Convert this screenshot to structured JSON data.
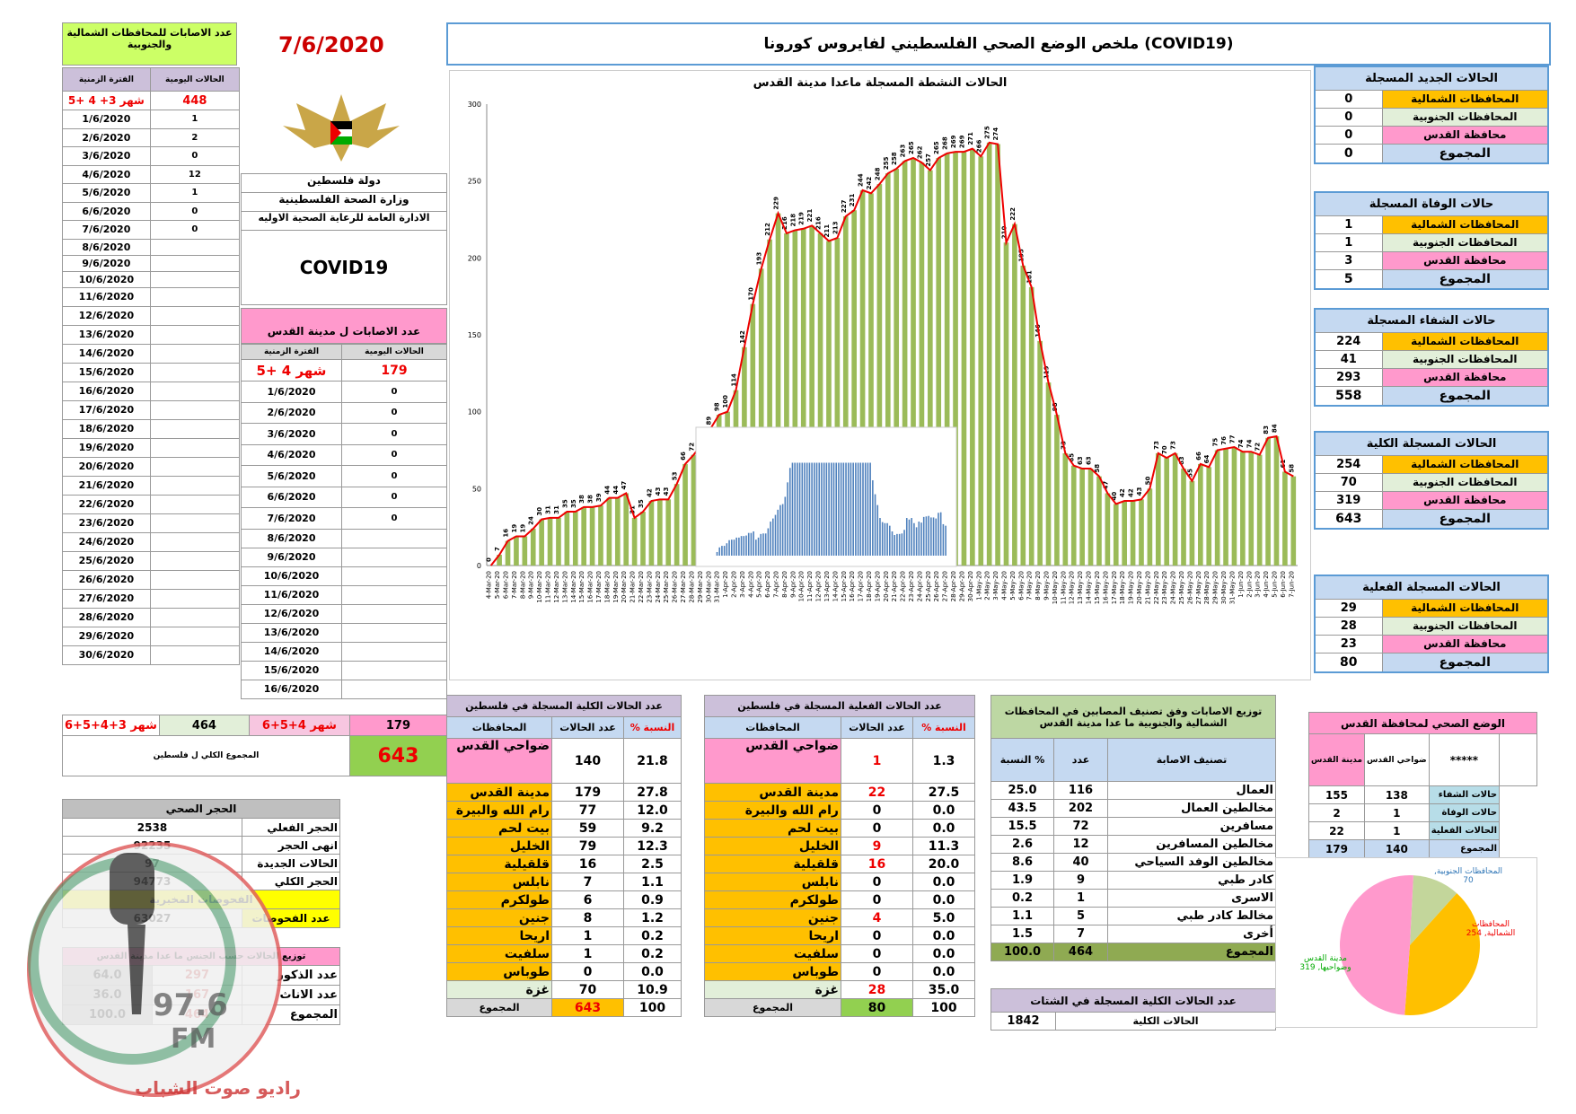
{
  "header": {
    "title": "ملخص الوضع الصحي الفلسطيني لفايروس كورونا (COVID19)",
    "date": "7/6/2020",
    "org1": "دولة فلسطين",
    "org2": "وزارة الصحة الفلسطينية",
    "org3": "الادارة العامة للرعاية الصحية الاوليه",
    "covid": "COVID19"
  },
  "left_table": {
    "title": "عدد الاصابات للمحافظات الشمالية والجنوبية",
    "col_daily": "الحالات اليومية",
    "col_period": "الفترة الزمنية",
    "first": {
      "period": "شهر 3+ 4 +5",
      "value": "448"
    },
    "rows": [
      [
        "1/6/2020",
        "1"
      ],
      [
        "2/6/2020",
        "2"
      ],
      [
        "3/6/2020",
        "0"
      ],
      [
        "4/6/2020",
        "12"
      ],
      [
        "5/6/2020",
        "1"
      ],
      [
        "6/6/2020",
        "0"
      ],
      [
        "7/6/2020",
        "0"
      ],
      [
        "8/6/2020",
        ""
      ],
      [
        "9/6/2020",
        ""
      ],
      [
        "10/6/2020",
        ""
      ],
      [
        "11/6/2020",
        ""
      ],
      [
        "12/6/2020",
        ""
      ],
      [
        "13/6/2020",
        ""
      ],
      [
        "14/6/2020",
        ""
      ],
      [
        "15/6/2020",
        ""
      ],
      [
        "16/6/2020",
        ""
      ],
      [
        "17/6/2020",
        ""
      ],
      [
        "18/6/2020",
        ""
      ],
      [
        "19/6/2020",
        ""
      ],
      [
        "20/6/2020",
        ""
      ],
      [
        "21/6/2020",
        ""
      ],
      [
        "22/6/2020",
        ""
      ],
      [
        "23/6/2020",
        ""
      ],
      [
        "24/6/2020",
        ""
      ],
      [
        "25/6/2020",
        ""
      ],
      [
        "26/6/2020",
        ""
      ],
      [
        "27/6/2020",
        ""
      ],
      [
        "28/6/2020",
        ""
      ],
      [
        "29/6/2020",
        ""
      ],
      [
        "30/6/2020",
        ""
      ]
    ],
    "total_period": "شهر 3+4+5+6",
    "total": "464"
  },
  "jer_table": {
    "title": "عدد الاصابات ل مدينة القدس",
    "col_period": "الفترة الزمنية",
    "col_daily": "الحالات اليومية",
    "first": {
      "period": "شهر 4 +5",
      "value": "179"
    },
    "rows": [
      [
        "1/6/2020",
        "0"
      ],
      [
        "2/6/2020",
        "0"
      ],
      [
        "3/6/2020",
        "0"
      ],
      [
        "4/6/2020",
        "0"
      ],
      [
        "5/6/2020",
        "0"
      ],
      [
        "6/6/2020",
        "0"
      ],
      [
        "7/6/2020",
        "0"
      ],
      [
        "8/6/2020",
        ""
      ],
      [
        "9/6/2020",
        ""
      ],
      [
        "10/6/2020",
        ""
      ],
      [
        "11/6/2020",
        ""
      ],
      [
        "12/6/2020",
        ""
      ],
      [
        "13/6/2020",
        ""
      ],
      [
        "14/6/2020",
        ""
      ],
      [
        "15/6/2020",
        ""
      ],
      [
        "16/6/2020",
        ""
      ]
    ],
    "total_period": "شهر 4+5+6",
    "total": "179"
  },
  "grand": {
    "label": "المجموع الكلي ل فلسطين",
    "value": "643"
  },
  "quarantine": {
    "title": "الحجر الصحي",
    "rows": [
      [
        "الحجر الفعلي",
        "2538"
      ],
      [
        "انهى الحجر",
        "92235"
      ],
      [
        "الحالات الجديدة",
        "97"
      ],
      [
        "الحجر الكلي",
        "94773"
      ]
    ],
    "tests_title": "الفحوصات المخبرية",
    "tests_label": "عدد الفحوصات",
    "tests": "63027"
  },
  "gender": {
    "title": "توزيع الحالات حسب الجنس ما عدا مدينة القدس",
    "rows": [
      [
        "عدد الذكور",
        "297",
        "64.0"
      ],
      [
        "عدد الاناث",
        "167",
        "36.0"
      ],
      [
        "المجموع",
        "464",
        "100.0"
      ]
    ]
  },
  "watermark": {
    "freq": "97.6",
    "fm": "FM",
    "name": "راديو صوت الشباب"
  },
  "sidebar": [
    {
      "title": "الحالات الجديد المسجلة",
      "rows": [
        [
          "المحافظات الشمالية",
          "0"
        ],
        [
          "المحافظات الجنوبية",
          "0"
        ],
        [
          "محافظة القدس",
          "0"
        ]
      ],
      "total_label": "المجموع",
      "total": "0"
    },
    {
      "title": "حالات الوفاة المسجلة",
      "rows": [
        [
          "المحافظات الشمالية",
          "1"
        ],
        [
          "المحافظات الجنوبية",
          "1"
        ],
        [
          "محافظة القدس",
          "3"
        ]
      ],
      "total_label": "المجموع",
      "total": "5"
    },
    {
      "title": "حالات الشفاء المسجلة",
      "rows": [
        [
          "المحافظات الشمالية",
          "224"
        ],
        [
          "المحافظات الجنوبية",
          "41"
        ],
        [
          "محافظة القدس",
          "293"
        ]
      ],
      "total_label": "المجموع",
      "total": "558"
    },
    {
      "title": "الحالات المسجلة الكلية",
      "rows": [
        [
          "المحافظات الشمالية",
          "254"
        ],
        [
          "المحافظات الجنوبية",
          "70"
        ],
        [
          "محافظة القدس",
          "319"
        ]
      ],
      "total_label": "المجموع",
      "total": "643"
    },
    {
      "title": "الحالات المسجلة الفعلية",
      "rows": [
        [
          "المحافظات الشمالية",
          "29"
        ],
        [
          "المحافظات الجنوبية",
          "28"
        ],
        [
          "محافظة القدس",
          "23"
        ]
      ],
      "total_label": "المجموع",
      "total": "80"
    }
  ],
  "total_table": {
    "title": "عدد الحالات الكلية المسجلة في فلسطين",
    "h_gov": "المحافظات",
    "h_cnt": "عدد الحالات",
    "h_pct": "% النسبة",
    "rows": [
      [
        "ضواحي القدس",
        "140",
        "21.8"
      ],
      [
        "مدينة القدس",
        "179",
        "27.8"
      ],
      [
        "رام الله والبيرة",
        "77",
        "12.0"
      ],
      [
        "بيت لحم",
        "59",
        "9.2"
      ],
      [
        "الخليل",
        "79",
        "12.3"
      ],
      [
        "قلقيلية",
        "16",
        "2.5"
      ],
      [
        "نابلس",
        "7",
        "1.1"
      ],
      [
        "طولكرم",
        "6",
        "0.9"
      ],
      [
        "جنين",
        "8",
        "1.2"
      ],
      [
        "اريحا",
        "1",
        "0.2"
      ],
      [
        "سلفيت",
        "1",
        "0.2"
      ],
      [
        "طوباس",
        "0",
        "0.0"
      ],
      [
        "غزة",
        "70",
        "10.9"
      ]
    ],
    "total_label": "المجموع",
    "total": "643",
    "total_pct": "100"
  },
  "active_table": {
    "title": "عدد الحالات الفعلية المسجلة في فلسطين",
    "h_gov": "المحافظات",
    "h_cnt": "عدد الحالات",
    "h_pct": "% النسبة",
    "rows": [
      [
        "ضواحي القدس",
        "1",
        "1.3"
      ],
      [
        "مدينة القدس",
        "22",
        "27.5"
      ],
      [
        "رام الله والبيرة",
        "0",
        "0.0"
      ],
      [
        "بيت لحم",
        "0",
        "0.0"
      ],
      [
        "الخليل",
        "9",
        "11.3"
      ],
      [
        "قلقيلية",
        "16",
        "20.0"
      ],
      [
        "نابلس",
        "0",
        "0.0"
      ],
      [
        "طولكرم",
        "0",
        "0.0"
      ],
      [
        "جنين",
        "4",
        "5.0"
      ],
      [
        "اريحا",
        "0",
        "0.0"
      ],
      [
        "سلفيت",
        "0",
        "0.0"
      ],
      [
        "طوباس",
        "0",
        "0.0"
      ],
      [
        "غزة",
        "28",
        "35.0"
      ]
    ],
    "total_label": "المجموع",
    "total": "80",
    "total_pct": "100"
  },
  "class_table": {
    "title": "توزيع الاصابات وفق تصنيف المصابين في المحافظات الشمالية والجنوبية ما عدا مدينة القدس",
    "h_class": "تصنيف الاصابة",
    "h_cnt": "عدد",
    "h_pct": "النسبة %",
    "rows": [
      [
        "العمال",
        "116",
        "25.0"
      ],
      [
        "مخالطين العمال",
        "202",
        "43.5"
      ],
      [
        "مسافرين",
        "72",
        "15.5"
      ],
      [
        "مخالطين المسافرين",
        "12",
        "2.6"
      ],
      [
        "مخالطين الوفد السياحي",
        "40",
        "8.6"
      ],
      [
        "كادر طبي",
        "9",
        "1.9"
      ],
      [
        "الاسرى",
        "1",
        "0.2"
      ],
      [
        "مخالط كادر طبي",
        "5",
        "1.1"
      ],
      [
        "أخرى",
        "7",
        "1.5"
      ]
    ],
    "total_label": "المجموع",
    "total": "464",
    "total_pct": "100.0"
  },
  "winter": {
    "title": "عدد الحالات الكلية المسجلة في الشتات",
    "label": "الحالات الكلية",
    "value": "1842"
  },
  "jer_health": {
    "title": "الوضع الصحي لمحافظة القدس",
    "h_stars": "*****",
    "h_sub": "ضواحي القدس",
    "h_city": "مدينة القدس",
    "rows": [
      [
        "حالات الشفاء",
        "138",
        "155"
      ],
      [
        "حالات الوفاة",
        "1",
        "2"
      ],
      [
        "الحالات الفعلية",
        "1",
        "22"
      ],
      [
        "المجموع",
        "140",
        "179"
      ]
    ]
  },
  "pie": {
    "labels": [
      "المحافظات الجنوبية, 70",
      "المحافظات الشمالية, 254",
      "مدينة القدس وضواحيها, 319"
    ]
  },
  "chart_data": {
    "type": "bar",
    "title": "الحالات النشطة المسجلة ماعدا مدينة القدس",
    "ylim": [
      0,
      300
    ],
    "yticks": [
      0,
      50,
      100,
      150,
      200,
      250,
      300
    ],
    "categories": [
      "4-Mar-20",
      "5-Mar-20",
      "6-Mar-20",
      "7-Mar-20",
      "8-Mar-20",
      "9-Mar-20",
      "10-Mar-20",
      "11-Mar-20",
      "12-Mar-20",
      "13-Mar-20",
      "14-Mar-20",
      "15-Mar-20",
      "16-Mar-20",
      "17-Mar-20",
      "18-Mar-20",
      "19-Mar-20",
      "20-Mar-20",
      "21-Mar-20",
      "22-Mar-20",
      "23-Mar-20",
      "24-Mar-20",
      "25-Mar-20",
      "26-Mar-20",
      "27-Mar-20",
      "28-Mar-20",
      "29-Mar-20",
      "30-Mar-20",
      "31-Mar-20",
      "1-Apr-20",
      "2-Apr-20",
      "3-Apr-20",
      "4-Apr-20",
      "5-Apr-20",
      "6-Apr-20",
      "7-Apr-20",
      "8-Apr-20",
      "9-Apr-20",
      "10-Apr-20",
      "11-Apr-20",
      "12-Apr-20",
      "13-Apr-20",
      "14-Apr-20",
      "15-Apr-20",
      "16-Apr-20",
      "17-Apr-20",
      "18-Apr-20",
      "19-Apr-20",
      "20-Apr-20",
      "21-Apr-20",
      "22-Apr-20",
      "23-Apr-20",
      "24-Apr-20",
      "25-Apr-20",
      "26-Apr-20",
      "27-Apr-20",
      "28-Apr-20",
      "29-Apr-20",
      "30-Apr-20",
      "1-May-20",
      "2-May-20",
      "3-May-20",
      "4-May-20",
      "5-May-20",
      "6-May-20",
      "7-May-20",
      "8-May-20",
      "9-May-20",
      "10-May-20",
      "11-May-20",
      "12-May-20",
      "13-May-20",
      "14-May-20",
      "15-May-20",
      "16-May-20",
      "17-May-20",
      "18-May-20",
      "19-May-20",
      "20-May-20",
      "21-May-20",
      "22-May-20",
      "23-May-20",
      "24-May-20",
      "25-May-20",
      "26-May-20",
      "27-May-20",
      "28-May-20",
      "29-May-20",
      "30-May-20",
      "31-May-20",
      "1-Jun-20",
      "2-Jun-20",
      "3-Jun-20",
      "4-Jun-20",
      "5-Jun-20",
      "6-Jun-20",
      "7-Jun-20"
    ],
    "values": [
      0,
      7,
      16,
      19,
      19,
      24,
      30,
      31,
      31,
      35,
      35,
      38,
      38,
      39,
      44,
      44,
      47,
      31,
      35,
      42,
      43,
      43,
      53,
      66,
      72,
      79,
      89,
      98,
      100,
      114,
      142,
      170,
      193,
      212,
      229,
      216,
      218,
      219,
      221,
      216,
      211,
      213,
      227,
      231,
      244,
      242,
      248,
      255,
      258,
      263,
      265,
      262,
      257,
      265,
      268,
      269,
      269,
      271,
      266,
      275,
      274,
      210,
      222,
      195,
      181,
      146,
      119,
      98,
      73,
      65,
      63,
      63,
      58,
      47,
      40,
      42,
      42,
      43,
      50,
      73,
      70,
      73,
      63,
      55,
      66,
      64,
      75,
      76,
      77,
      74,
      74,
      72,
      83,
      84,
      61,
      58
    ]
  }
}
